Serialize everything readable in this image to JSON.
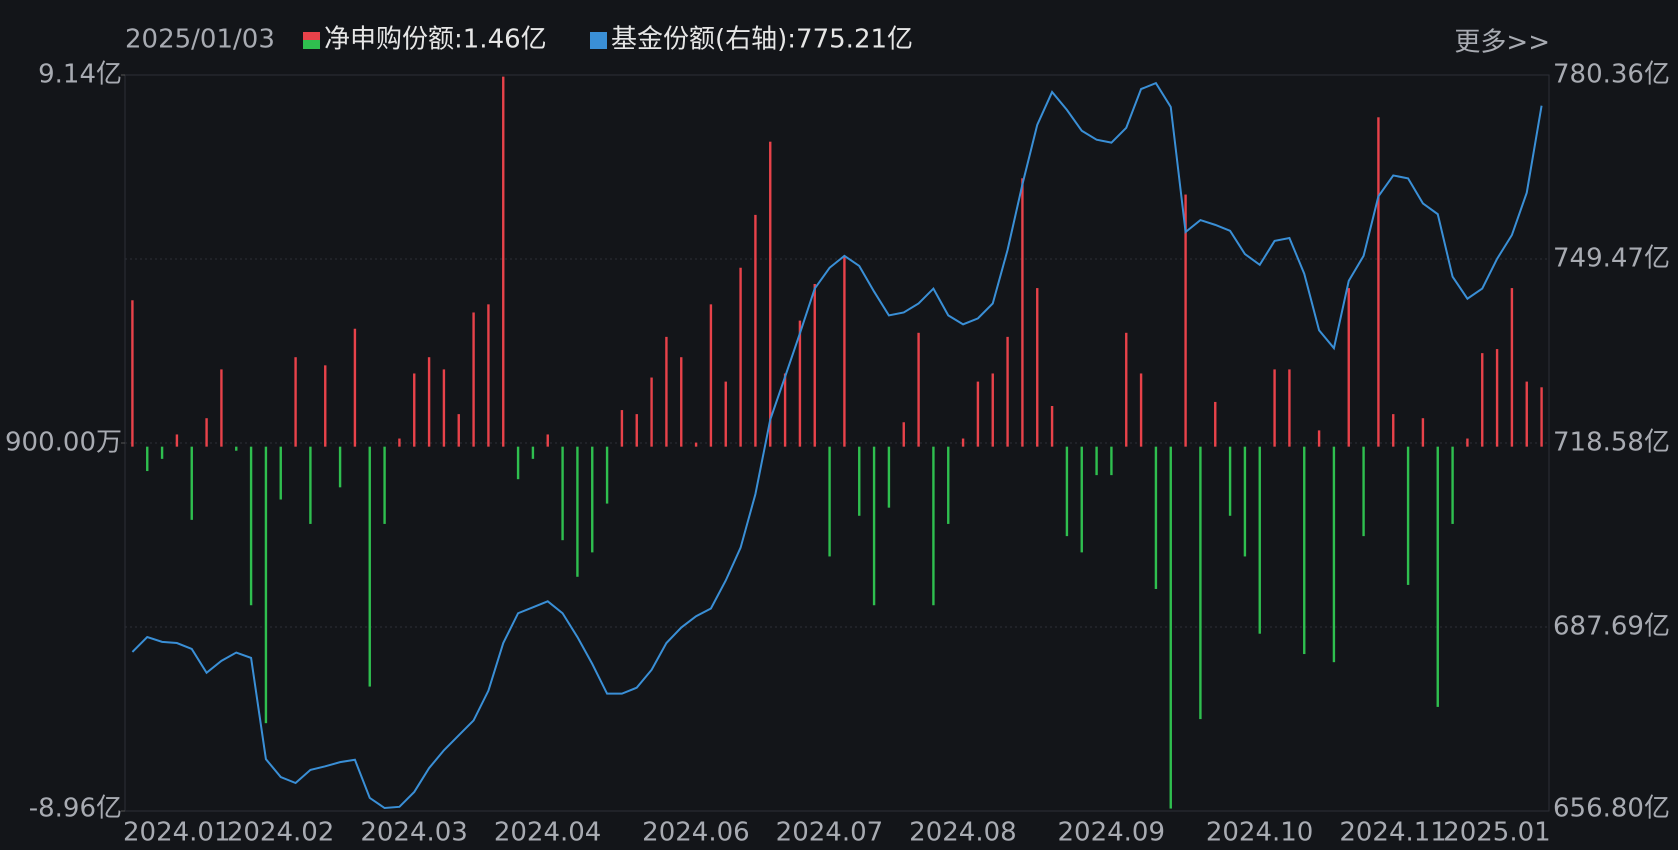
{
  "chart_data": {
    "type": "bar_line",
    "date": "2025/01/03",
    "more": "更多>>",
    "categories": [
      "2024.01",
      null,
      null,
      null,
      null,
      null,
      null,
      "2024.02",
      null,
      null,
      null,
      null,
      null,
      null,
      null,
      null,
      "2024.03",
      null,
      null,
      null,
      null,
      null,
      null,
      null,
      null,
      "2024.04",
      null,
      null,
      null,
      null,
      null,
      null,
      null,
      null,
      null,
      "2024.06",
      null,
      null,
      null,
      null,
      null,
      null,
      null,
      null,
      "2024.07",
      null,
      null,
      null,
      null,
      null,
      null,
      null,
      null,
      "2024.08",
      null,
      null,
      null,
      null,
      null,
      null,
      null,
      null,
      null,
      "2024.09",
      null,
      null,
      null,
      null,
      null,
      null,
      null,
      null,
      null,
      "2024.10",
      null,
      null,
      null,
      null,
      null,
      null,
      null,
      null,
      "2024.11",
      null,
      null,
      null,
      null,
      null,
      null,
      "2025.01",
      null,
      null,
      null,
      null,
      null,
      null
    ],
    "ylim": [
      -8.96,
      9.14
    ],
    "yticks": [
      {
        "value": 9.14,
        "label": "9.14亿"
      },
      {
        "value": 0.09,
        "label": "900.00万"
      },
      {
        "value": -8.96,
        "label": "-8.96亿"
      }
    ],
    "y2lim": [
      656.8,
      780.36
    ],
    "y2ticks": [
      {
        "value": 780.36,
        "label": "780.36亿"
      },
      {
        "value": 749.47,
        "label": "749.47亿"
      },
      {
        "value": 718.58,
        "label": "718.58亿"
      },
      {
        "value": 687.69,
        "label": "687.69亿"
      },
      {
        "value": 656.8,
        "label": "656.80亿"
      }
    ],
    "grid": true,
    "series": [
      {
        "name": "净申购份额:1.46亿",
        "kind": "bar",
        "color": "#e8424a",
        "negative_color": "#2fbf4f",
        "values": [
          3.6,
          -0.6,
          -0.3,
          0.3,
          -1.8,
          0.7,
          1.9,
          -0.1,
          -3.9,
          -6.8,
          -1.3,
          2.2,
          -1.9,
          2.0,
          -1.0,
          2.9,
          -5.9,
          -1.9,
          0.2,
          1.8,
          2.2,
          1.9,
          0.8,
          3.3,
          3.5,
          9.1,
          -0.8,
          -0.3,
          0.3,
          -2.3,
          -3.2,
          -2.6,
          -1.4,
          0.9,
          0.8,
          1.7,
          2.7,
          2.2,
          0.1,
          3.5,
          1.6,
          4.4,
          5.7,
          7.5,
          1.8,
          3.1,
          4.0,
          -2.7,
          4.7,
          -1.7,
          -3.9,
          -1.5,
          0.6,
          2.8,
          -3.9,
          -1.9,
          0.2,
          1.6,
          1.8,
          2.7,
          6.6,
          3.9,
          1.0,
          -2.2,
          -2.6,
          -0.7,
          -0.7,
          2.8,
          1.8,
          -3.5,
          -8.9,
          6.2,
          -6.7,
          1.1,
          -1.7,
          -2.7,
          -4.6,
          1.9,
          1.9,
          -5.1,
          0.4,
          -5.3,
          3.9,
          -2.2,
          8.1,
          0.8,
          -3.4,
          0.7,
          -6.4,
          -1.9,
          0.2,
          2.3,
          2.4,
          3.9,
          1.6,
          1.46
        ]
      },
      {
        "name": "基金份额(右轴):775.21亿",
        "kind": "line",
        "axis": "y2",
        "color": "#3a8fd6",
        "values": [
          683.5,
          686,
          685.2,
          685,
          684,
          680,
          682,
          683.4,
          682.5,
          665.5,
          662.5,
          661.5,
          663.7,
          664.3,
          665,
          665.4,
          659,
          657.3,
          657.5,
          660,
          664,
          667,
          669.5,
          672,
          677,
          685,
          690,
          691,
          692,
          690,
          686,
          681.5,
          676.5,
          676.5,
          677.5,
          680.5,
          685,
          687.6,
          689.5,
          690.8,
          695.5,
          701,
          710,
          722.5,
          729.7,
          737,
          744.5,
          748,
          750,
          748.3,
          744,
          740,
          740.5,
          742,
          744.5,
          740,
          738.5,
          739.5,
          742,
          751,
          762,
          772,
          777.5,
          774.5,
          771,
          769.5,
          769,
          771.5,
          778,
          779,
          775,
          754,
          756,
          755.2,
          754.2,
          750.3,
          748.5,
          752.5,
          753,
          747,
          737.5,
          734.5,
          745.8,
          750,
          760,
          763.5,
          763,
          758.8,
          757,
          746.5,
          742.8,
          744.5,
          749.5,
          753.5,
          760.6,
          775.21
        ]
      }
    ]
  }
}
